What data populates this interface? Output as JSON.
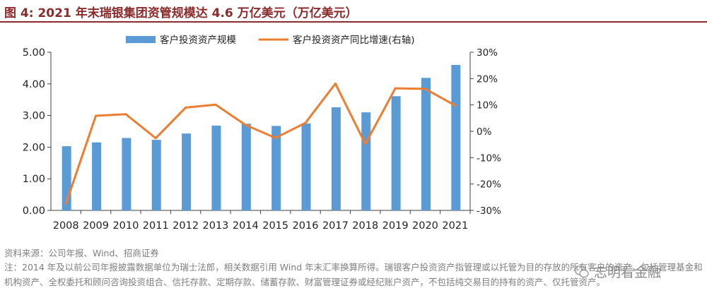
{
  "title": "图 4:  2021 年末瑞银集团资管规模达 4.6 万亿美元（万亿美元）",
  "source": "资料来源：公司年报、Wind、招商证券",
  "note": "注：2014 年及以前公司年报披露数据单位为瑞士法郎，相关数据引用 Wind 年末汇率换算所得。瑞银客户投资资产指管理或以托管为目的存放的所有客户的资产，包括管理基金和机构资产、全权委托和顾问咨询投资组合、信托存款、定期存款、储蓄存款、财富管理证券或经纪账户资产，不包括纯交易目的持有的资产、仅托管资产。",
  "watermark": "志明看金融",
  "watermark_icon": "wechat-icon",
  "colors": {
    "bar": "#5b9bd5",
    "line": "#ed7d31",
    "title": "#8b2b2b"
  },
  "chart_data": {
    "type": "bar+line",
    "categories": [
      "2008",
      "2009",
      "2010",
      "2011",
      "2012",
      "2013",
      "2014",
      "2015",
      "2016",
      "2017",
      "2018",
      "2019",
      "2020",
      "2021"
    ],
    "series": [
      {
        "name": "客户投资资产规模",
        "type": "bar",
        "axis": "left",
        "values": [
          2.03,
          2.15,
          2.29,
          2.23,
          2.43,
          2.68,
          2.74,
          2.67,
          2.75,
          3.26,
          3.1,
          3.61,
          4.19,
          4.6
        ]
      },
      {
        "name": "客户投资资产同比增速(右轴)",
        "type": "line",
        "axis": "right",
        "values": [
          -27.5,
          5.9,
          6.5,
          -2.6,
          9.0,
          10.1,
          2.4,
          -2.5,
          3.2,
          18.1,
          -4.8,
          16.3,
          16.1,
          9.8
        ]
      }
    ],
    "y_left": {
      "min": 0,
      "max": 5,
      "ticks": [
        "0.00",
        "1.00",
        "2.00",
        "3.00",
        "4.00",
        "5.00"
      ]
    },
    "y_right": {
      "min": -30,
      "max": 30,
      "ticks": [
        "-30%",
        "-20%",
        "-10%",
        "0%",
        "10%",
        "20%",
        "30%"
      ]
    },
    "legend_position": "top-center",
    "grid": false
  }
}
